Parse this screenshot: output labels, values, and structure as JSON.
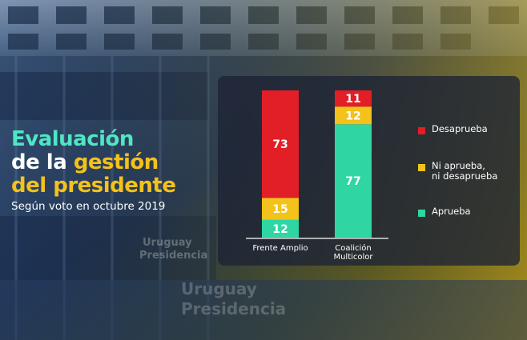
{
  "title": {
    "line1": "Evaluación",
    "line2a": "de la ",
    "line2b": "gestión",
    "line3": "del presidente"
  },
  "subtitle": "Según voto en octubre 2019",
  "background": {
    "signs": [
      "Uruguay",
      "Presidencia"
    ]
  },
  "colors": {
    "desaprueba": "#e21e26",
    "ni": "#f3c21b",
    "aprueba": "#2fd6a3",
    "title_teal": "#4fe6c4",
    "title_yellow": "#f3c21b"
  },
  "chart_data": {
    "type": "bar",
    "stacked": true,
    "categories": [
      "Frente Amplio",
      "Coalición\nMulticolor"
    ],
    "series": [
      {
        "name": "Aprueba",
        "values": [
          12,
          77
        ],
        "color": "#2fd6a3"
      },
      {
        "name": "Ni aprueba,\nni desaprueba",
        "values": [
          15,
          12
        ],
        "color": "#f3c21b"
      },
      {
        "name": "Desaprueba",
        "values": [
          73,
          11
        ],
        "color": "#e21e26"
      }
    ],
    "ylim": [
      0,
      100
    ],
    "legend_order": [
      "Desaprueba",
      "Ni aprueba,\nni desaprueba",
      "Aprueba"
    ],
    "legend_position": "right"
  }
}
